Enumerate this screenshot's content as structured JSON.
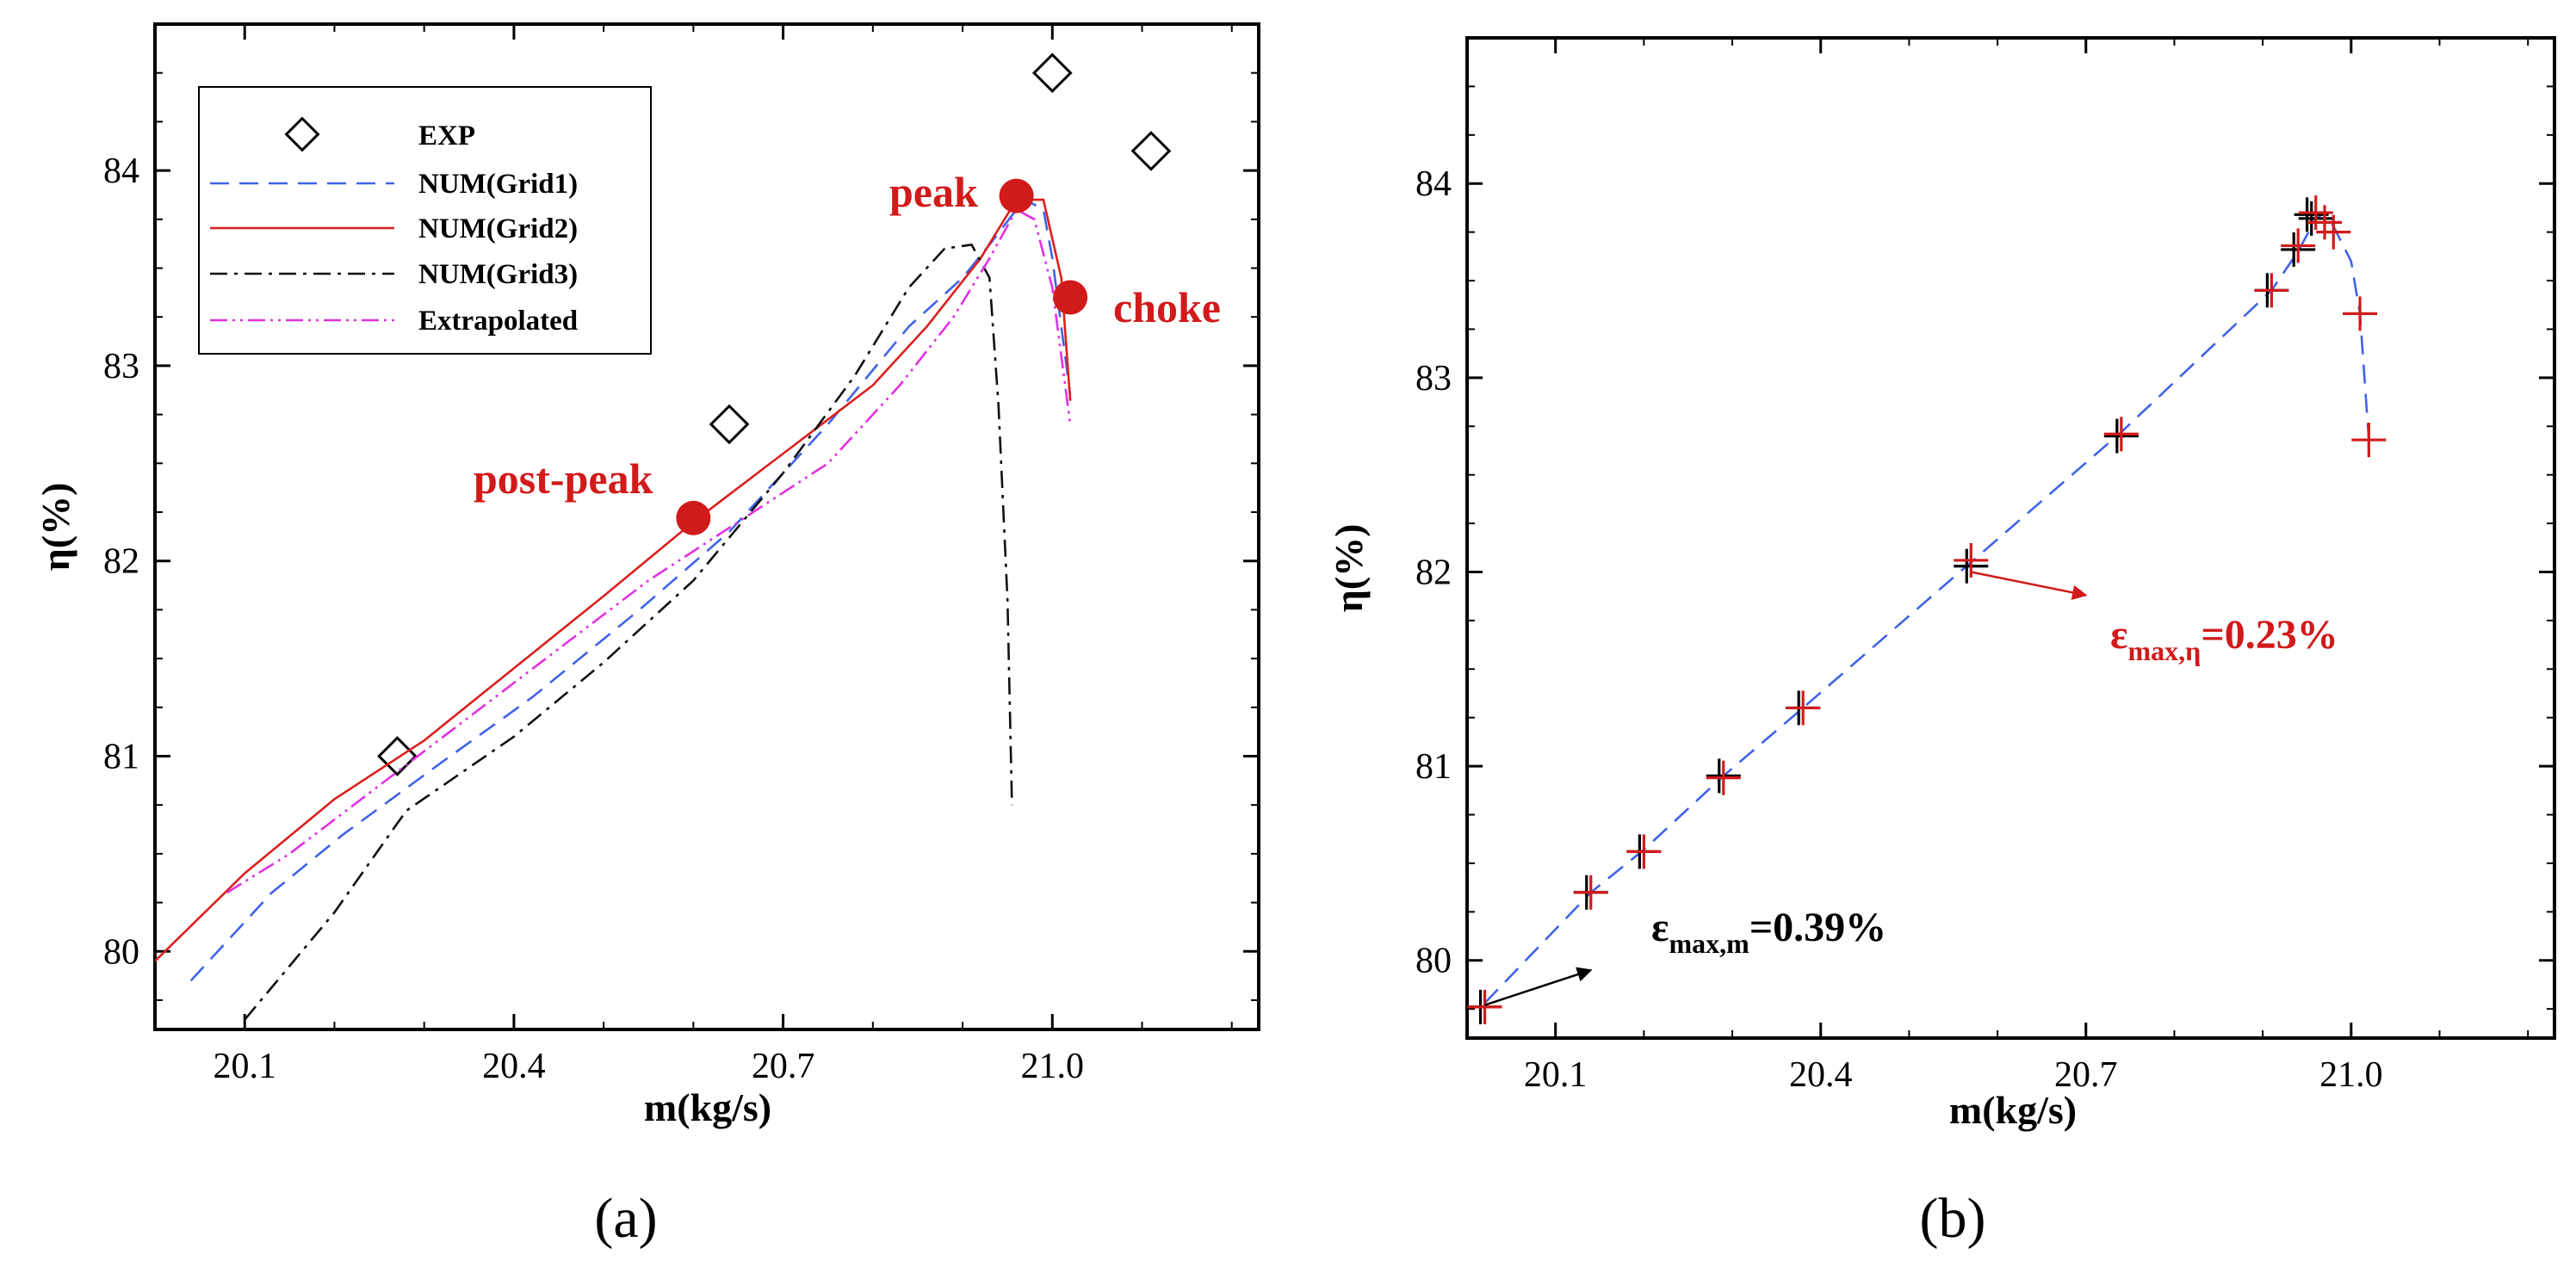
{
  "colors": {
    "grid1": "#3f63e8",
    "grid2": "#dc1f1f",
    "grid3": "#111111",
    "extrapolated": "#e230e2",
    "point": "#d11a1a",
    "annotation_red": "#d11a1a",
    "axis": "#000000"
  },
  "chart_data": [
    {
      "panel": "a",
      "panel_label": "(a)",
      "type": "line",
      "xlabel": "m(kg/s)",
      "ylabel": "η(%)",
      "xlim": [
        20.0,
        21.23
      ],
      "ylim": [
        79.6,
        84.75
      ],
      "xticks": [
        20.1,
        20.4,
        20.7,
        21.0
      ],
      "xtick_labels": [
        "20.1",
        "20.4",
        "20.7",
        "21.0"
      ],
      "yticks": [
        80,
        81,
        82,
        83,
        84
      ],
      "ytick_labels": [
        "80",
        "81",
        "82",
        "83",
        "84"
      ],
      "legend_position": "top-left",
      "series": [
        {
          "name": "EXP",
          "legend": "EXP",
          "style": "diamond",
          "x": [
            20.27,
            20.64,
            21.0,
            21.11
          ],
          "y": [
            81.0,
            82.7,
            84.5,
            84.1
          ]
        },
        {
          "name": "NUM(Grid1)",
          "legend": "NUM(Grid1)",
          "style": "dashed",
          "x": [
            20.04,
            20.13,
            20.21,
            20.32,
            20.42,
            20.54,
            20.64,
            20.75,
            20.84,
            20.9,
            20.93,
            20.96,
            20.97,
            20.99,
            21.0,
            21.02
          ],
          "y": [
            79.85,
            80.3,
            80.6,
            80.97,
            81.3,
            81.75,
            82.15,
            82.7,
            83.2,
            83.45,
            83.62,
            83.8,
            83.85,
            83.8,
            83.55,
            82.85
          ]
        },
        {
          "name": "NUM(Grid2)",
          "legend": "NUM(Grid2)",
          "style": "solid",
          "x": [
            20.0,
            20.1,
            20.2,
            20.3,
            20.4,
            20.5,
            20.6,
            20.7,
            20.8,
            20.86,
            20.92,
            20.96,
            20.99,
            21.01,
            21.02
          ],
          "y": [
            79.95,
            80.4,
            80.78,
            81.08,
            81.45,
            81.82,
            82.2,
            82.55,
            82.9,
            83.2,
            83.55,
            83.85,
            83.85,
            83.45,
            82.82
          ]
        },
        {
          "name": "NUM(Grid3)",
          "legend": "NUM(Grid3)",
          "style": "dashdot",
          "x": [
            20.1,
            20.2,
            20.28,
            20.4,
            20.5,
            20.6,
            20.7,
            20.78,
            20.84,
            20.88,
            20.91,
            20.93,
            20.94,
            20.95,
            20.955
          ],
          "y": [
            79.65,
            80.2,
            80.72,
            81.1,
            81.48,
            81.9,
            82.45,
            82.95,
            83.4,
            83.6,
            83.62,
            83.45,
            82.8,
            81.8,
            80.75
          ]
        },
        {
          "name": "Extrapolated",
          "legend": "Extrapolated",
          "style": "dashdotdot",
          "x": [
            20.08,
            20.15,
            20.25,
            20.35,
            20.45,
            20.55,
            20.65,
            20.75,
            20.83,
            20.89,
            20.93,
            20.96,
            20.98,
            21.0,
            21.02
          ],
          "y": [
            80.3,
            80.5,
            80.85,
            81.2,
            81.55,
            81.9,
            82.2,
            82.5,
            82.9,
            83.25,
            83.55,
            83.8,
            83.75,
            83.4,
            82.7
          ]
        }
      ],
      "points": [
        {
          "label": "post-peak",
          "x": 20.6,
          "y": 82.22
        },
        {
          "label": "peak",
          "x": 20.96,
          "y": 83.87
        },
        {
          "label": "choke",
          "x": 21.02,
          "y": 83.35
        }
      ]
    },
    {
      "panel": "b",
      "panel_label": "(b)",
      "type": "scatter",
      "xlabel": "m(kg/s)",
      "ylabel": "η(%)",
      "xlim": [
        20.0,
        21.23
      ],
      "ylim": [
        79.6,
        84.75
      ],
      "xticks": [
        20.1,
        20.4,
        20.7,
        21.0
      ],
      "xtick_labels": [
        "20.1",
        "20.4",
        "20.7",
        "21.0"
      ],
      "yticks": [
        80,
        81,
        82,
        83,
        84
      ],
      "ytick_labels": [
        "80",
        "81",
        "82",
        "83",
        "84"
      ],
      "line": {
        "style": "dashed",
        "x": [
          20.02,
          20.14,
          20.2,
          20.29,
          20.38,
          20.57,
          20.74,
          20.91,
          20.94,
          20.96,
          20.97,
          20.98,
          21.0,
          21.01,
          21.02
        ],
        "y": [
          79.78,
          80.35,
          80.57,
          80.95,
          81.3,
          82.05,
          82.72,
          83.45,
          83.65,
          83.82,
          83.85,
          83.78,
          83.6,
          83.33,
          82.68
        ]
      },
      "markers_black": {
        "x": [
          20.02,
          20.14,
          20.2,
          20.29,
          20.38,
          20.57,
          20.74,
          20.91,
          20.94,
          20.955,
          20.96
        ],
        "y": [
          79.76,
          80.35,
          80.56,
          80.95,
          81.3,
          82.03,
          82.7,
          83.45,
          83.66,
          83.84,
          83.82
        ]
      },
      "markers_red": {
        "x": [
          20.02,
          20.14,
          20.2,
          20.29,
          20.38,
          20.57,
          20.74,
          20.91,
          20.94,
          20.96,
          20.97,
          20.98,
          21.01,
          21.02
        ],
        "y": [
          79.76,
          80.35,
          80.56,
          80.94,
          81.3,
          82.06,
          82.71,
          83.45,
          83.68,
          83.85,
          83.8,
          83.75,
          83.33,
          82.68
        ]
      },
      "annotations": [
        {
          "id": "eps-m",
          "symbol": "ε",
          "subscript": "max,m",
          "value": "=0.39%",
          "color": "black",
          "arrow_from": [
            20.02,
            79.77
          ],
          "arrow_to": [
            20.14,
            79.95
          ]
        },
        {
          "id": "eps-eta",
          "symbol": "ε",
          "subscript": "max,η",
          "value": "=0.23%",
          "color": "red",
          "arrow_from": [
            20.57,
            82.0
          ],
          "arrow_to": [
            20.7,
            81.88
          ]
        }
      ]
    }
  ]
}
